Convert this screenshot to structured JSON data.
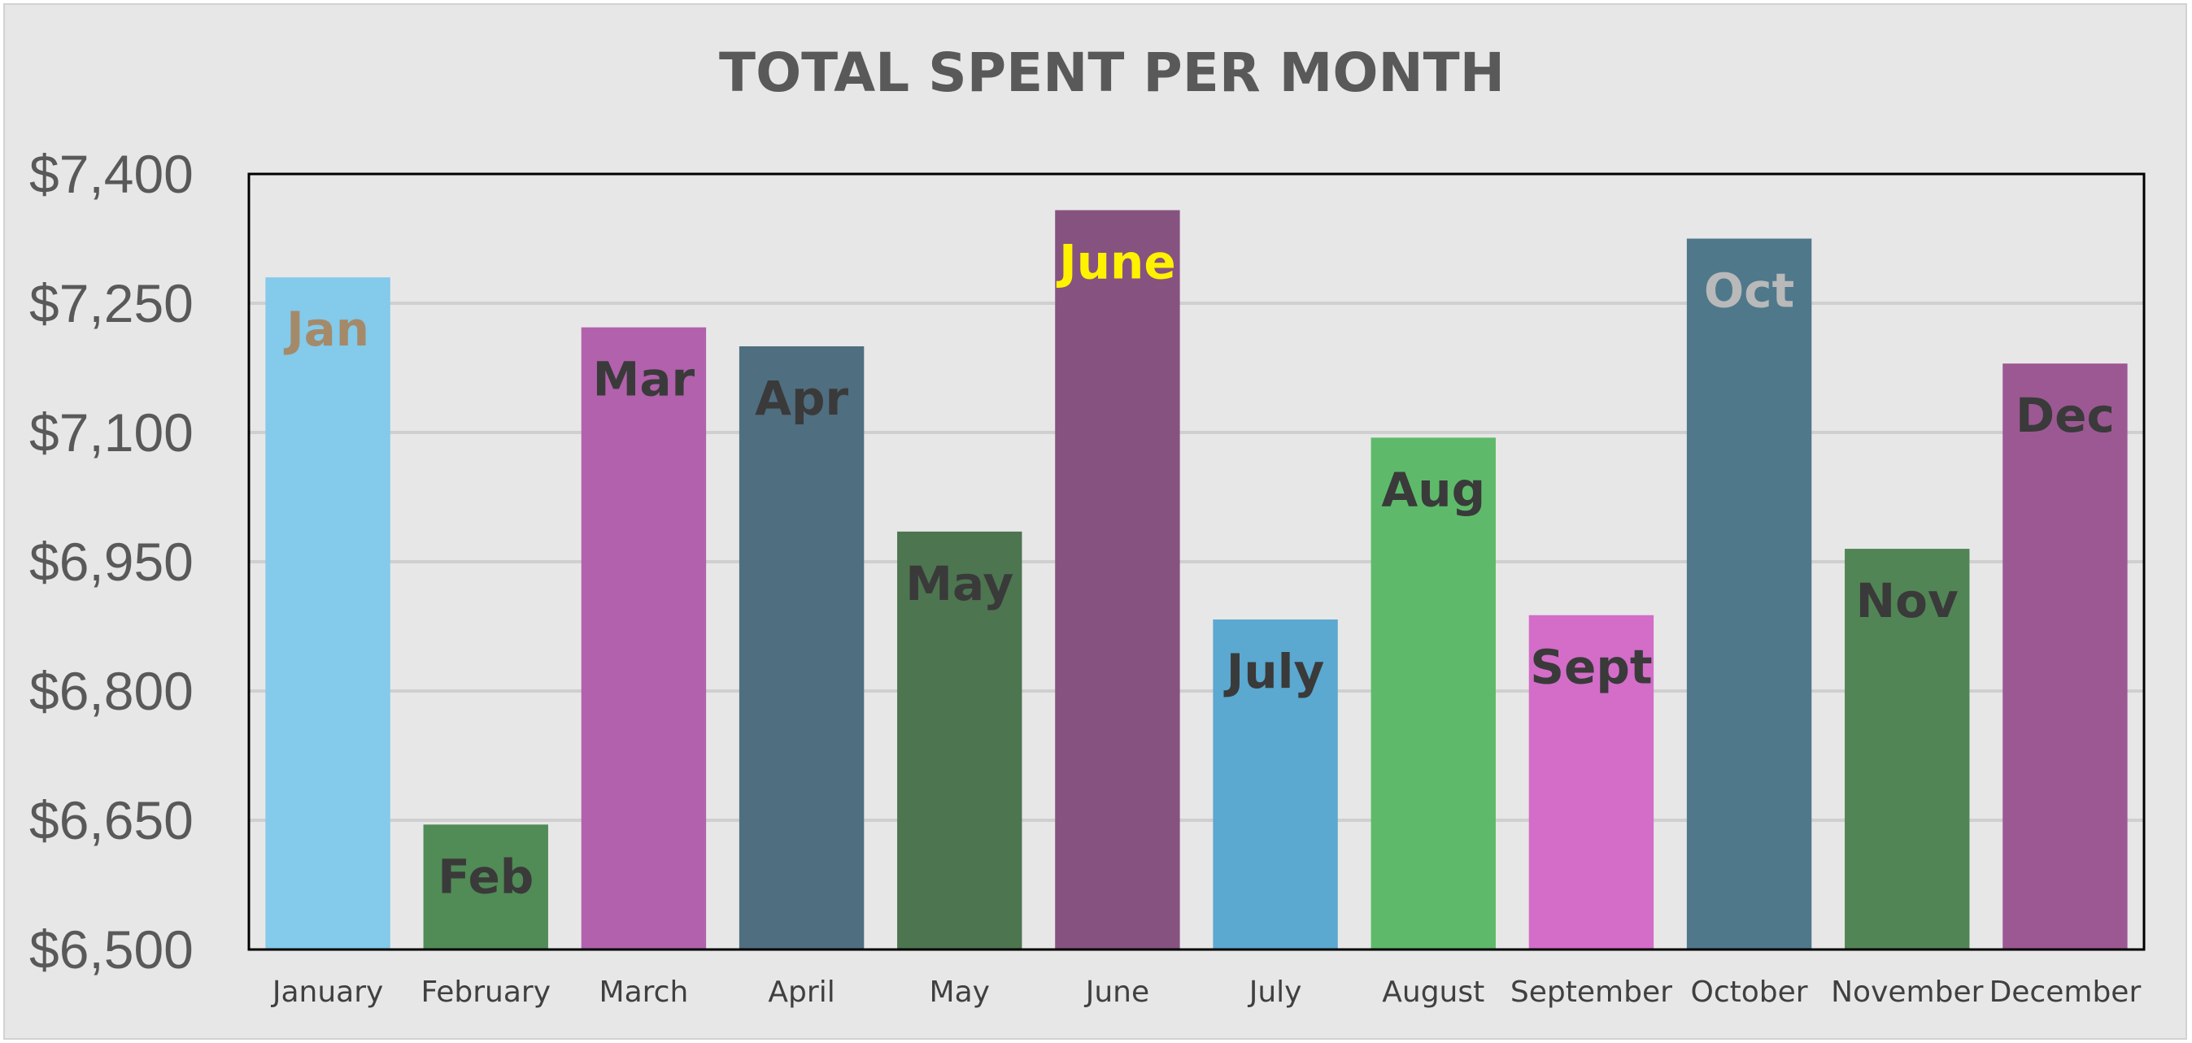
{
  "chart_data": {
    "type": "bar",
    "title": "TOTAL SPENT PER MONTH",
    "xlabel": "",
    "ylabel": "",
    "ylim": [
      6500,
      7400
    ],
    "yticks": [
      6500,
      6650,
      6800,
      6950,
      7100,
      7250,
      7400
    ],
    "ytick_labels": [
      "$6,500",
      "$6,650",
      "$6,800",
      "$6,950",
      "$7,100",
      "$7,250",
      "$7,400"
    ],
    "grid": "horizontal",
    "legend": "none",
    "categories": [
      "January",
      "February",
      "March",
      "April",
      "May",
      "June",
      "July",
      "August",
      "September",
      "October",
      "November",
      "December"
    ],
    "values": [
      7280,
      6645,
      7222,
      7200,
      6985,
      7358,
      6883,
      7094,
      6888,
      7325,
      6965,
      7180
    ],
    "data_labels": [
      "Jan",
      "Feb",
      "Mar",
      "Apr",
      "May",
      "June",
      "July",
      "Aug",
      "Sept",
      "Oct",
      "Nov",
      "Dec"
    ],
    "bar_colors": [
      "#83caeb",
      "#518b56",
      "#b261ad",
      "#4f6e80",
      "#4d7550",
      "#86527f",
      "#5ba8d0",
      "#5eba6a",
      "#d36dc8",
      "#4f788b",
      "#518555",
      "#9c5893"
    ],
    "label_colors": [
      "#a58a69",
      "#3a3a3a",
      "#3a3a3a",
      "#3a3a3a",
      "#3a3a3a",
      "#fff200",
      "#3a3a3a",
      "#3a3a3a",
      "#3a3a3a",
      "#b9b9b9",
      "#3a3a3a",
      "#3a3a3a"
    ]
  }
}
